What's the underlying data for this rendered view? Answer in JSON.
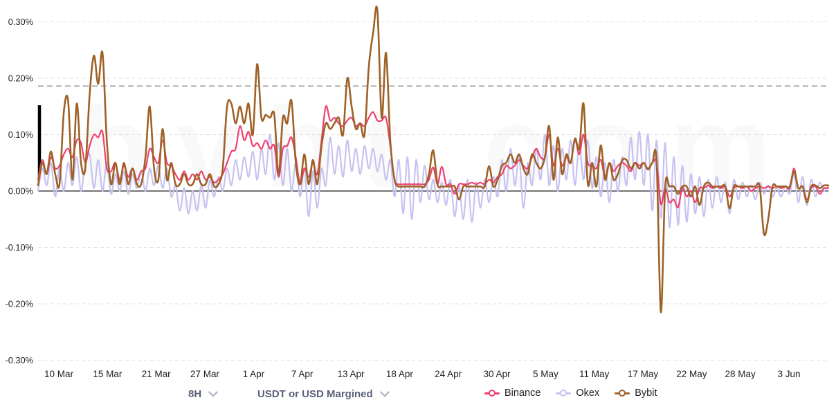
{
  "watermark": "bybt.com",
  "controls": {
    "interval": "8H",
    "margin_type": "USDT or USD Margined"
  },
  "legend": {
    "position": "bottom",
    "items": [
      {
        "label": "Binance",
        "color": "#ef3f6e"
      },
      {
        "label": "Okex",
        "color": "#c7c2f0"
      },
      {
        "label": "Bybit",
        "color": "#9e6126"
      }
    ]
  },
  "chart_data": {
    "type": "line",
    "title": "",
    "xlabel": "",
    "ylabel": "",
    "y_unit": "%",
    "ylim": [
      -0.3,
      0.3
    ],
    "grid": "horizontal dashed",
    "legend_position": "bottom",
    "y_tick_labels": [
      "0.30%",
      "0.20%",
      "0.10%",
      "0.00%",
      "-0.10%",
      "-0.20%",
      "-0.30%"
    ],
    "x_tick_labels": [
      "10 Mar",
      "15 Mar",
      "21 Mar",
      "27 Mar",
      "1 Apr",
      "7 Apr",
      "13 Apr",
      "18 Apr",
      "24 Apr",
      "30 Apr",
      "5 May",
      "11 May",
      "17 May",
      "22 May",
      "28 May",
      "3 Jun"
    ],
    "threshold_line_value": 0.186,
    "zero_line": true,
    "step_days": 0.5,
    "start_date": "8 Mar",
    "end_date": "6 Jun",
    "annotations": {
      "black_bar": {
        "day": 0.1,
        "from": 0.022,
        "to": 0.152
      }
    },
    "series": [
      {
        "name": "Okex",
        "color": "#c7c2f0",
        "width": 2.2,
        "values": [
          0.0,
          0.04,
          0.01,
          0.05,
          -0.01,
          0.04,
          0.0,
          0.05,
          0.01,
          0.06,
          0.0,
          0.05,
          0.065,
          0.005,
          0.055,
          0.0,
          0.05,
          -0.005,
          0.03,
          0.0,
          0.035,
          -0.005,
          0.03,
          0.005,
          0.035,
          0.0,
          0.04,
          0.01,
          0.045,
          0.005,
          0.04,
          -0.01,
          0.01,
          -0.035,
          0.005,
          -0.04,
          0.0,
          -0.035,
          0.01,
          -0.03,
          0.02,
          -0.01,
          0.025,
          0.0,
          0.04,
          0.01,
          0.055,
          0.02,
          0.06,
          0.025,
          0.07,
          0.02,
          0.075,
          0.03,
          0.1,
          0.02,
          0.085,
          0.01,
          0.075,
          0.0,
          0.05,
          -0.01,
          0.04,
          -0.045,
          0.035,
          -0.03,
          0.04,
          0.01,
          0.095,
          0.03,
          0.08,
          0.025,
          0.09,
          0.035,
          0.075,
          0.03,
          0.08,
          0.04,
          0.075,
          0.035,
          0.065,
          0.02,
          0.055,
          -0.01,
          0.055,
          -0.04,
          0.06,
          -0.05,
          0.055,
          -0.02,
          0.045,
          -0.015,
          0.02,
          -0.02,
          0.015,
          -0.025,
          0.02,
          -0.045,
          0.01,
          -0.05,
          0.02,
          -0.055,
          0.015,
          -0.03,
          0.02,
          -0.02,
          0.025,
          -0.01,
          0.055,
          0.0,
          0.075,
          0.01,
          0.06,
          -0.03,
          0.05,
          0.01,
          0.075,
          0.02,
          0.1,
          0.01,
          0.08,
          0.0,
          0.075,
          0.02,
          0.09,
          0.01,
          0.085,
          0.02,
          0.09,
          0.005,
          0.06,
          -0.01,
          0.05,
          -0.02,
          0.055,
          0.0,
          0.06,
          0.01,
          0.095,
          0.02,
          0.105,
          0.01,
          0.1,
          -0.035,
          0.09,
          -0.048,
          0.085,
          -0.065,
          0.06,
          -0.06,
          0.045,
          -0.055,
          0.03,
          -0.04,
          0.025,
          -0.045,
          0.02,
          -0.03,
          0.025,
          -0.02,
          0.015,
          -0.04,
          0.02,
          -0.015,
          0.015,
          -0.01,
          0.01,
          -0.015,
          0.015,
          -0.005,
          0.01,
          -0.01,
          0.005,
          -0.01,
          0.01,
          -0.005,
          0.03,
          -0.02,
          0.025,
          -0.025,
          0.02,
          -0.01,
          0.015,
          0.0,
          0.01
        ]
      },
      {
        "name": "Binance",
        "color": "#ef3f6e",
        "width": 2.2,
        "values": [
          0.02,
          0.055,
          0.03,
          0.06,
          0.04,
          0.045,
          0.065,
          0.075,
          0.06,
          0.09,
          0.085,
          0.05,
          0.08,
          0.1,
          0.095,
          0.105,
          0.04,
          0.035,
          0.05,
          0.02,
          0.045,
          0.025,
          0.04,
          0.02,
          0.035,
          0.04,
          0.075,
          0.06,
          0.05,
          0.09,
          0.05,
          0.045,
          0.03,
          0.02,
          0.035,
          0.02,
          0.03,
          0.02,
          0.035,
          0.02,
          0.025,
          0.015,
          0.02,
          0.03,
          0.05,
          0.07,
          0.075,
          0.115,
          0.09,
          0.105,
          0.08,
          0.085,
          0.075,
          0.09,
          0.075,
          0.08,
          0.025,
          0.075,
          0.08,
          0.095,
          0.06,
          0.012,
          0.04,
          0.025,
          0.05,
          0.03,
          0.09,
          0.15,
          0.125,
          0.13,
          0.12,
          0.115,
          0.125,
          0.13,
          0.115,
          0.12,
          0.115,
          0.13,
          0.14,
          0.125,
          0.125,
          0.13,
          0.08,
          0.02,
          0.012,
          0.012,
          0.012,
          0.012,
          0.012,
          0.012,
          0.012,
          0.02,
          0.042,
          0.012,
          0.043,
          0.012,
          0.012,
          -0.005,
          0.012,
          0.012,
          0.012,
          0.015,
          0.012,
          0.015,
          0.012,
          0.02,
          0.015,
          0.025,
          0.03,
          0.045,
          0.04,
          0.045,
          0.055,
          0.045,
          0.04,
          0.06,
          0.075,
          0.06,
          0.06,
          0.1,
          0.045,
          0.075,
          0.045,
          0.06,
          0.05,
          0.09,
          0.065,
          0.1,
          0.05,
          0.045,
          0.04,
          0.055,
          0.025,
          0.05,
          0.035,
          0.045,
          0.05,
          0.045,
          0.035,
          0.05,
          0.045,
          0.05,
          0.04,
          0.05,
          0.05,
          -0.023,
          0.005,
          -0.02,
          -0.015,
          -0.029,
          0.005,
          -0.01,
          0.0,
          -0.02,
          0.005,
          0.005,
          0.01,
          0.005,
          0.008,
          0.005,
          0.008,
          -0.01,
          0.005,
          0.008,
          0.005,
          0.008,
          0.0,
          0.005,
          0.008,
          0.005,
          0.008,
          0.005,
          0.008,
          0.005,
          0.008,
          0.005,
          0.04,
          0.005,
          0.008,
          -0.015,
          0.005,
          0.008,
          -0.005,
          0.005,
          0.005
        ]
      },
      {
        "name": "Bybit",
        "color": "#9e6126",
        "width": 2.6,
        "values": [
          0.01,
          0.05,
          0.03,
          0.07,
          0.03,
          0.012,
          0.14,
          0.16,
          0.02,
          0.155,
          0.05,
          0.04,
          0.17,
          0.24,
          0.19,
          0.245,
          0.09,
          0.012,
          0.05,
          0.012,
          0.05,
          0.012,
          0.04,
          0.012,
          0.012,
          0.06,
          0.15,
          0.04,
          0.02,
          0.11,
          0.02,
          0.05,
          0.012,
          0.012,
          0.03,
          0.012,
          0.012,
          0.03,
          0.012,
          0.012,
          0.03,
          0.008,
          0.012,
          0.04,
          0.15,
          0.155,
          0.12,
          0.15,
          0.12,
          0.155,
          0.1,
          0.225,
          0.13,
          0.135,
          0.13,
          0.135,
          0.03,
          0.13,
          0.12,
          0.16,
          0.05,
          0.012,
          0.065,
          0.012,
          0.055,
          0.012,
          0.08,
          0.12,
          0.11,
          0.12,
          0.13,
          0.1,
          0.2,
          0.15,
          0.11,
          0.12,
          0.1,
          0.22,
          0.28,
          0.32,
          0.13,
          0.245,
          0.09,
          0.02,
          0.008,
          0.008,
          0.008,
          0.008,
          0.008,
          0.008,
          0.008,
          0.03,
          0.072,
          0.012,
          0.008,
          0.008,
          0.008,
          0.008,
          -0.015,
          0.008,
          0.008,
          0.008,
          0.008,
          0.008,
          0.008,
          0.044,
          0.008,
          0.02,
          0.045,
          0.05,
          0.065,
          0.05,
          0.065,
          0.04,
          0.03,
          0.065,
          0.05,
          0.04,
          0.06,
          0.115,
          0.02,
          0.095,
          0.03,
          0.065,
          0.05,
          0.093,
          0.075,
          0.155,
          0.012,
          0.05,
          0.008,
          0.081,
          0.02,
          0.05,
          0.02,
          0.03,
          0.055,
          0.055,
          0.04,
          0.05,
          0.04,
          0.05,
          0.038,
          0.05,
          0.054,
          -0.215,
          0.008,
          0.008,
          0.008,
          -0.005,
          0.008,
          0.008,
          -0.01,
          0.008,
          -0.025,
          0.008,
          0.015,
          0.008,
          0.008,
          0.008,
          0.008,
          -0.031,
          0.008,
          0.008,
          0.008,
          0.008,
          0.008,
          0.008,
          0.008,
          -0.076,
          -0.05,
          0.008,
          0.008,
          0.008,
          0.008,
          0.008,
          0.035,
          0.005,
          0.008,
          -0.02,
          0.008,
          0.01,
          0.005,
          0.01,
          0.01
        ]
      }
    ]
  }
}
